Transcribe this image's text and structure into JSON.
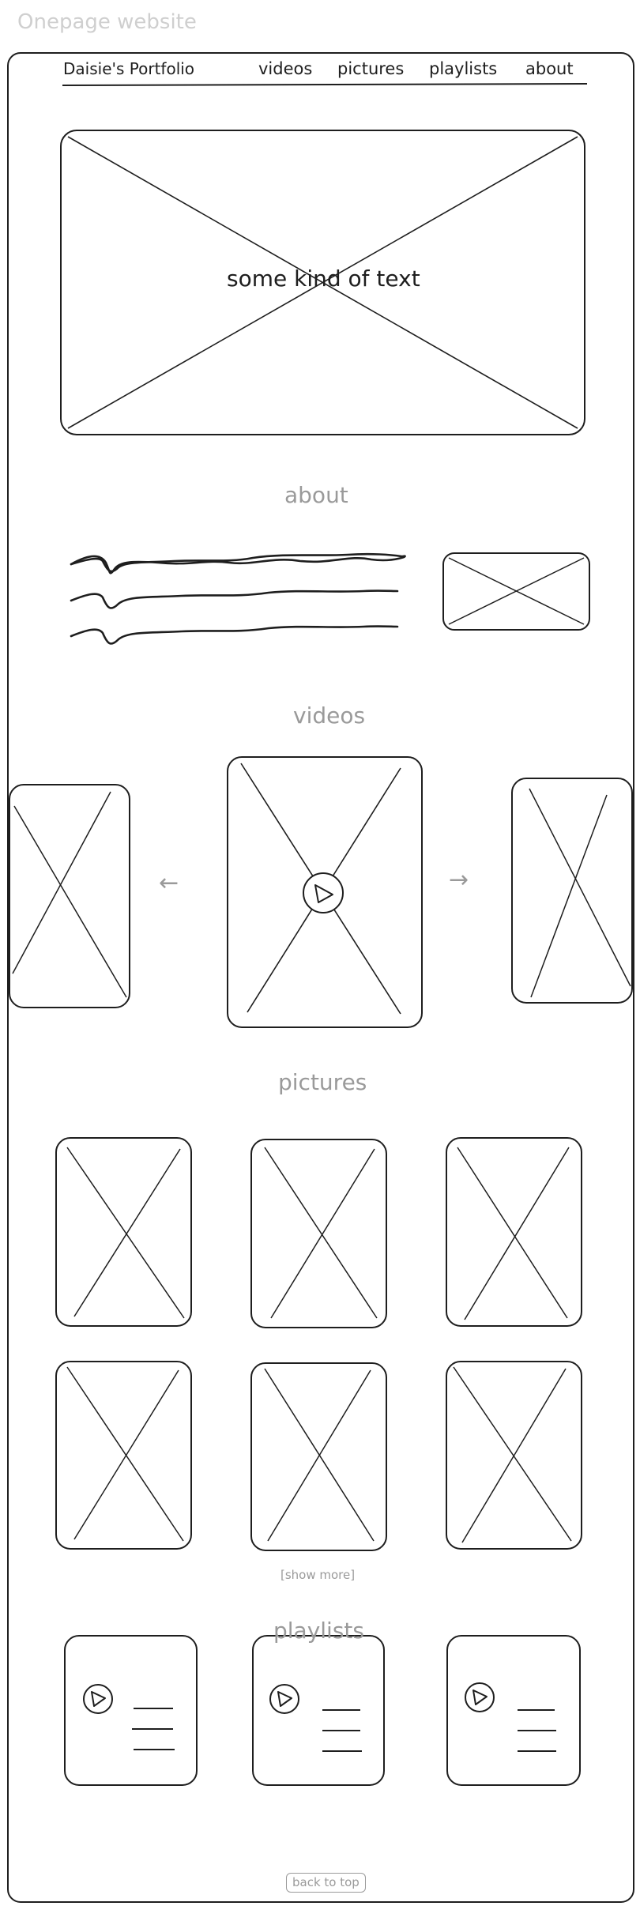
{
  "canvas": {
    "label": "Onepage website"
  },
  "header": {
    "brand": "Daisie's Portfolio",
    "nav": [
      "videos",
      "pictures",
      "playlists",
      "about"
    ]
  },
  "hero": {
    "text": "some kind of text"
  },
  "sections": {
    "about": {
      "title": "about"
    },
    "videos": {
      "title": "videos",
      "prev_arrow": "←",
      "next_arrow": "→"
    },
    "pictures": {
      "title": "pictures",
      "show_more": "[show more]"
    },
    "playlists": {
      "title": "playlists"
    }
  },
  "footer": {
    "back_to_top": "back to top"
  },
  "colors": {
    "ink": "#1e1e1e",
    "muted": "#9a9a9a",
    "faint": "#d0d0d0"
  }
}
